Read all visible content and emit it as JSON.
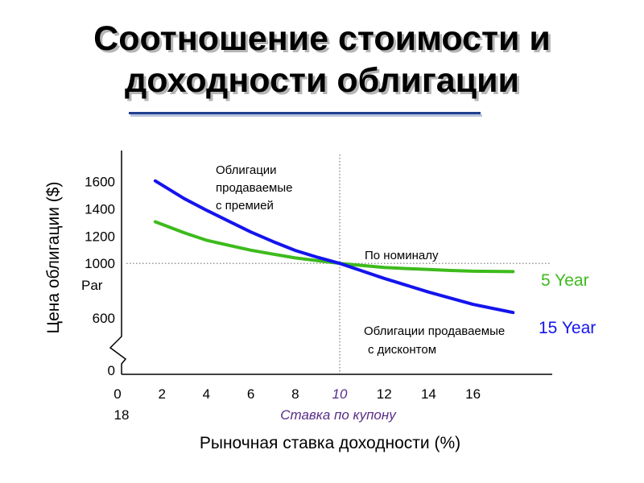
{
  "slide": {
    "title_line1": "Соотношение стоимости и",
    "title_line2": "доходности облигации"
  },
  "colors": {
    "green": "#3dbb1c",
    "blue": "#1414ee",
    "axis": "#000000",
    "coupon": "#5a2d87"
  },
  "chart_data": {
    "type": "line",
    "title": "",
    "ylabel": "Цена облигации ($)",
    "xlabel": "Рыночная ставка доходности (%)",
    "x_ticks": [
      "0",
      "2",
      "4",
      "6",
      "8",
      "10",
      "12",
      "14",
      "16"
    ],
    "x_tick_extra": "18",
    "y_ticks": [
      "0",
      "600",
      "1000",
      "1200",
      "1400",
      "1600"
    ],
    "y_par_label": "Par",
    "xlim": [
      0,
      20
    ],
    "ylim": [
      0,
      1600
    ],
    "coupon_rate": 10,
    "coupon_label": "Ставка по купону",
    "par_value": 1000,
    "series": [
      {
        "name": "5 Year",
        "color": "#3dbb1c",
        "x": [
          1.7,
          3,
          4,
          5,
          6,
          7,
          8,
          9,
          10,
          11,
          12,
          13,
          14,
          15,
          16,
          17.8
        ],
        "y": [
          1305,
          1225,
          1170,
          1133,
          1097,
          1068,
          1040,
          1020,
          1000,
          985,
          970,
          962,
          955,
          948,
          943,
          940
        ]
      },
      {
        "name": "15 Year",
        "color": "#1414ee",
        "x": [
          1.7,
          3,
          4,
          5,
          6,
          7,
          8,
          9,
          10,
          11,
          12,
          13,
          14,
          15,
          16,
          17.8
        ],
        "y": [
          1605,
          1475,
          1390,
          1310,
          1230,
          1160,
          1095,
          1045,
          1000,
          945,
          890,
          840,
          790,
          745,
          700,
          640
        ]
      }
    ],
    "annotations": {
      "premium": [
        "Облигации",
        "продаваемые",
        "с премией"
      ],
      "par": "По номиналу",
      "discount": [
        "Облигации продаваемые",
        "с дисконтом"
      ]
    }
  }
}
